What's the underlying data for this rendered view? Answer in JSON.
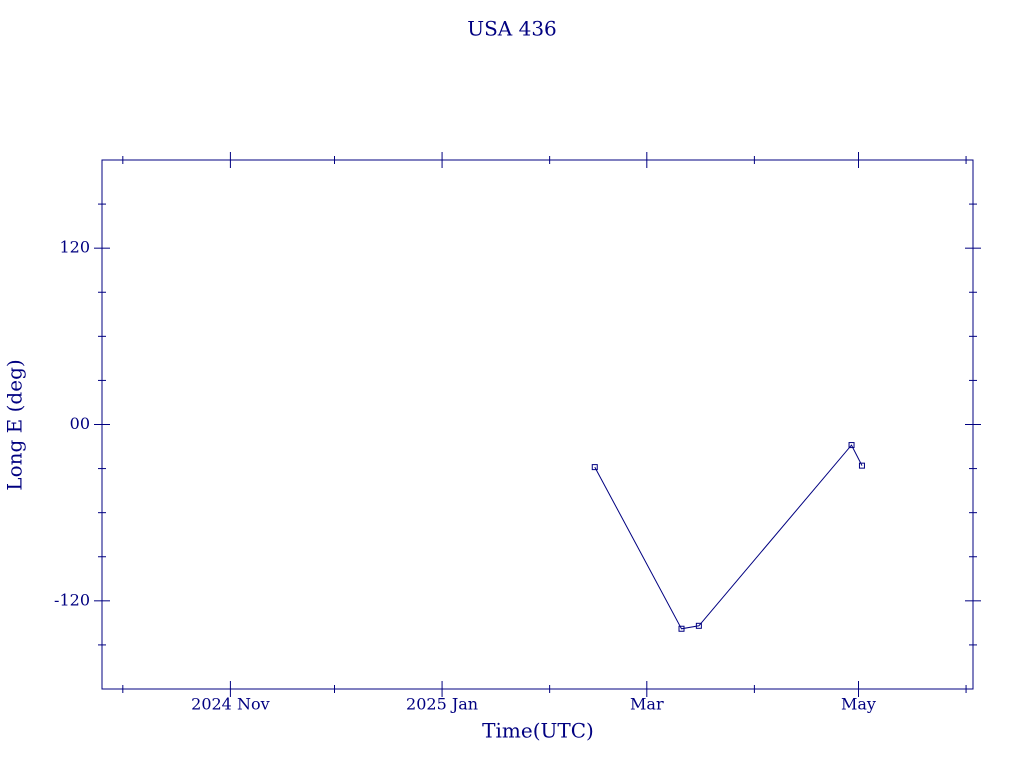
{
  "chart_data": {
    "type": "line",
    "title": "USA 436",
    "xlabel": "Time(UTC)",
    "ylabel": "Long E (deg)",
    "x": [
      "2025-02-14",
      "2025-03-11",
      "2025-03-16",
      "2025-04-29",
      "2025-05-02"
    ],
    "series": [
      {
        "color": "#000080",
        "values": [
          -29,
          -139,
          -137,
          -14,
          -28
        ]
      }
    ],
    "xlim": [
      "2024-09-25",
      "2025-06-03"
    ],
    "xticks": [
      {
        "value": "2024-11-01",
        "label": "2024 Nov"
      },
      {
        "value": "2025-01-01",
        "label": "2025 Jan"
      },
      {
        "value": "2025-03-01",
        "label": "Mar"
      },
      {
        "value": "2025-05-01",
        "label": "May"
      }
    ],
    "xminorticks": [
      "2024-10-01",
      "2024-12-01",
      "2025-02-01",
      "2025-04-01",
      "2025-06-01"
    ],
    "ylim": [
      -180,
      180
    ],
    "yticks": [
      -120,
      {
        "value": 0,
        "label": "00"
      },
      120
    ],
    "yminorticks": [
      -150,
      -90,
      -60,
      -30,
      30,
      60,
      90,
      150
    ]
  }
}
